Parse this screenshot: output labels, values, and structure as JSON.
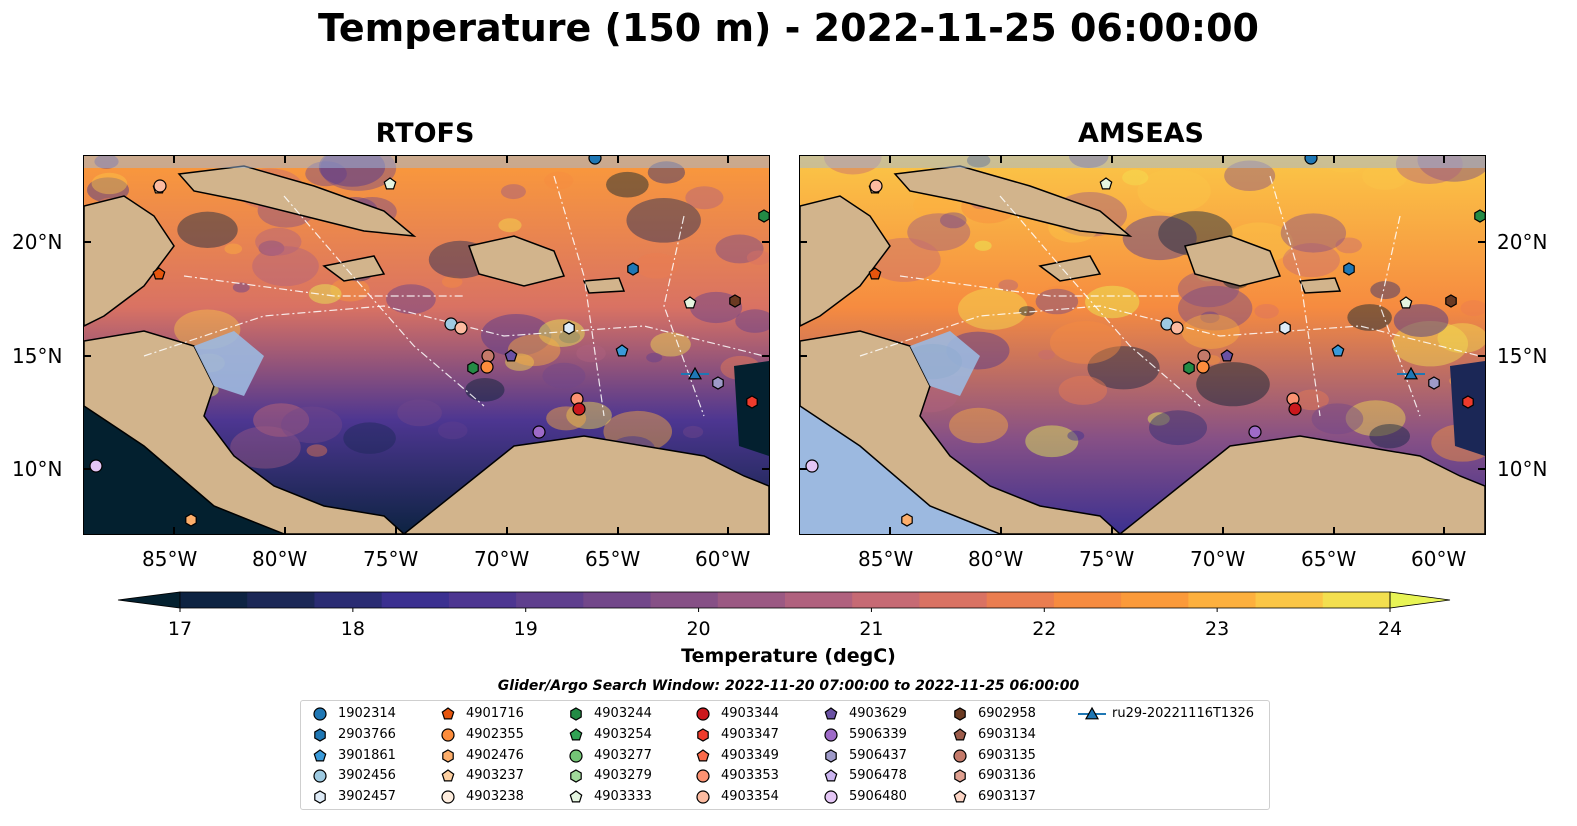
{
  "title": "Temperature (150 m) - 2022-11-25 06:00:00",
  "panels": [
    {
      "name": "RTOFS"
    },
    {
      "name": "AMSEAS"
    }
  ],
  "lon_labels": [
    "85°W",
    "80°W",
    "75°W",
    "70°W",
    "65°W",
    "60°W"
  ],
  "lat_labels": [
    "20°N",
    "15°N",
    "10°N"
  ],
  "colorbar": {
    "label": "Temperature (degC)",
    "ticks": [
      "17",
      "18",
      "19",
      "20",
      "21",
      "22",
      "23",
      "24"
    ],
    "min": 16.5,
    "max": 24.5,
    "step": 0.5,
    "colors": [
      "#03202f",
      "#0d2342",
      "#1b2756",
      "#2a2c73",
      "#3b3090",
      "#4d3691",
      "#5f3f8e",
      "#72478a",
      "#865086",
      "#9b5983",
      "#b0617e",
      "#c66a74",
      "#d97263",
      "#ea7d50",
      "#f68b40",
      "#fb9a3a",
      "#fdb03e",
      "#fbc646",
      "#f3df4f",
      "#e8f455"
    ]
  },
  "legend": {
    "title": "Glider/Argo Search Window: 2022-11-20 07:00:00 to 2022-11-25 06:00:00",
    "items": [
      {
        "label": "1902314",
        "marker": "circle",
        "color": "#1f77b4"
      },
      {
        "label": "2903766",
        "marker": "hexagon",
        "color": "#1f77b4"
      },
      {
        "label": "3901861",
        "marker": "pentagon",
        "color": "#3a9ad9"
      },
      {
        "label": "3902456",
        "marker": "circle",
        "color": "#9ecae1"
      },
      {
        "label": "3902457",
        "marker": "hexagon",
        "color": "#deebf7"
      },
      {
        "label": "4901716",
        "marker": "pentagon",
        "color": "#e6550d"
      },
      {
        "label": "4902355",
        "marker": "circle",
        "color": "#fd8d3c"
      },
      {
        "label": "4902476",
        "marker": "hexagon",
        "color": "#fdae6b"
      },
      {
        "label": "4903237",
        "marker": "pentagon",
        "color": "#fdd0a2"
      },
      {
        "label": "4903238",
        "marker": "circle",
        "color": "#feedde"
      },
      {
        "label": "4903244",
        "marker": "hexagon",
        "color": "#238b45"
      },
      {
        "label": "4903254",
        "marker": "pentagon",
        "color": "#31a354"
      },
      {
        "label": "4903277",
        "marker": "circle",
        "color": "#74c476"
      },
      {
        "label": "4903279",
        "marker": "hexagon",
        "color": "#a1d99b"
      },
      {
        "label": "4903333",
        "marker": "pentagon",
        "color": "#e5f5e0"
      },
      {
        "label": "4903344",
        "marker": "circle",
        "color": "#cb181d"
      },
      {
        "label": "4903347",
        "marker": "hexagon",
        "color": "#ef3b2c"
      },
      {
        "label": "4903349",
        "marker": "pentagon",
        "color": "#fb6a4a"
      },
      {
        "label": "4903353",
        "marker": "circle",
        "color": "#fc9272"
      },
      {
        "label": "4903354",
        "marker": "circle",
        "color": "#fcbba1"
      },
      {
        "label": "4903629",
        "marker": "pentagon",
        "color": "#6a51a3"
      },
      {
        "label": "5906339",
        "marker": "circle",
        "color": "#9e6ac8"
      },
      {
        "label": "5906437",
        "marker": "hexagon",
        "color": "#9e9ac8"
      },
      {
        "label": "5906478",
        "marker": "pentagon",
        "color": "#cbb5f0"
      },
      {
        "label": "5906480",
        "marker": "circle",
        "color": "#e4c6f5"
      },
      {
        "label": "6902958",
        "marker": "hexagon",
        "color": "#6b3a22"
      },
      {
        "label": "6903134",
        "marker": "pentagon",
        "color": "#9c5b4a"
      },
      {
        "label": "6903135",
        "marker": "circle",
        "color": "#c47a6a"
      },
      {
        "label": "6903136",
        "marker": "hexagon",
        "color": "#dfa090"
      },
      {
        "label": "6903137",
        "marker": "pentagon",
        "color": "#fcd5c5"
      },
      {
        "label": "ru29-20221116T1326",
        "marker": "triangle-line",
        "color": "#1f77b4"
      }
    ]
  },
  "map_colors": {
    "land": "#d2b48c",
    "shallow": "#9cb9e0",
    "coast": "#000000"
  }
}
